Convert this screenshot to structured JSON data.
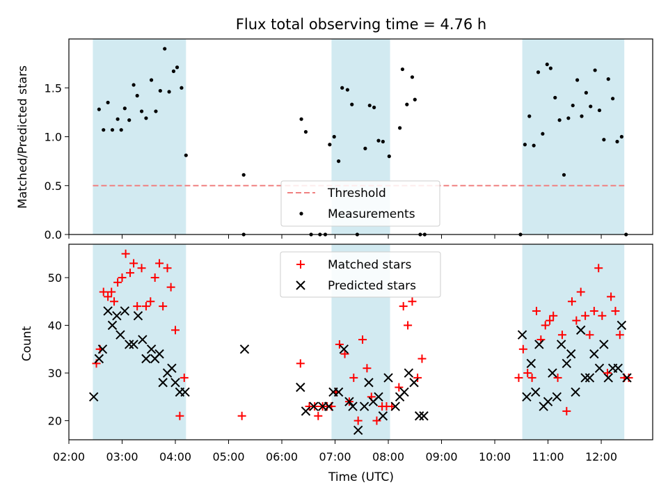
{
  "title": "Flux total observing time = 4.76 h",
  "colors": {
    "shade": "#add8e6",
    "threshold": "#f08080",
    "measurement": "#000000",
    "matched": "#ff0000",
    "predicted": "#000000"
  },
  "chart_data": [
    {
      "type": "scatter",
      "title": "Flux total observing time = 4.76 h",
      "xlabel": "",
      "ylabel": "Matched/Predicted stars",
      "xlim": [
        "02:00",
        "12:58"
      ],
      "ylim": [
        0,
        2.0
      ],
      "yticks": [
        0.0,
        0.5,
        1.0,
        1.5
      ],
      "ytick_labels": [
        "0.0",
        "0.5",
        "1.0",
        "1.5"
      ],
      "grid": false,
      "legend_position": "bottom-center",
      "shaded_intervals": [
        [
          "02:27",
          "04:12"
        ],
        [
          "06:56",
          "08:02"
        ],
        [
          "10:31",
          "12:26"
        ]
      ],
      "threshold": {
        "name": "Threshold",
        "value": 0.5,
        "x_range": [
          "02:27",
          "12:26"
        ]
      },
      "series": [
        {
          "name": "Measurements",
          "marker": "dot",
          "x": [
            "02:34",
            "02:39",
            "02:44",
            "02:49",
            "02:55",
            "02:59",
            "03:03",
            "03:08",
            "03:13",
            "03:17",
            "03:22",
            "03:27",
            "03:33",
            "03:38",
            "03:43",
            "03:48",
            "03:53",
            "03:58",
            "04:02",
            "04:07",
            "04:12",
            "05:17",
            "05:17",
            "06:22",
            "06:27",
            "06:33",
            "06:43",
            "06:49",
            "06:54",
            "06:59",
            "07:04",
            "07:08",
            "07:14",
            "07:19",
            "07:25",
            "07:34",
            "07:39",
            "07:44",
            "07:49",
            "07:54",
            "08:01",
            "08:13",
            "08:16",
            "08:21",
            "08:27",
            "08:30",
            "08:36",
            "08:41",
            "10:29",
            "10:34",
            "10:39",
            "10:44",
            "10:49",
            "10:54",
            "10:59",
            "11:03",
            "11:08",
            "11:13",
            "11:18",
            "11:23",
            "11:28",
            "11:33",
            "11:38",
            "11:43",
            "11:48",
            "11:53",
            "11:58",
            "12:03",
            "12:08",
            "12:13",
            "12:18",
            "12:23",
            "12:28"
          ],
          "y": [
            1.28,
            1.07,
            1.35,
            1.07,
            1.18,
            1.07,
            1.29,
            1.17,
            1.53,
            1.42,
            1.26,
            1.19,
            1.58,
            1.26,
            1.47,
            1.9,
            1.46,
            1.67,
            1.71,
            1.5,
            0.81,
            0.61,
            0.0,
            1.18,
            1.05,
            0.0,
            0.0,
            0.0,
            0.92,
            1.0,
            0.75,
            1.5,
            1.48,
            1.33,
            0.0,
            0.88,
            1.32,
            1.3,
            0.96,
            0.95,
            0.8,
            1.09,
            1.69,
            1.33,
            1.61,
            1.38,
            0.0,
            0.0,
            0.0,
            0.92,
            1.21,
            0.91,
            1.66,
            1.03,
            1.74,
            1.7,
            1.4,
            1.17,
            0.61,
            1.19,
            1.32,
            1.58,
            1.21,
            1.45,
            1.31,
            1.68,
            1.27,
            0.97,
            1.59,
            1.39,
            0.95,
            1.0,
            0.0
          ]
        }
      ]
    },
    {
      "type": "scatter",
      "xlabel": "Time (UTC)",
      "ylabel": "Count",
      "xlim": [
        "02:00",
        "12:58"
      ],
      "ylim": [
        16,
        57
      ],
      "yticks": [
        20,
        30,
        40,
        50
      ],
      "ytick_labels": [
        "20",
        "30",
        "40",
        "50"
      ],
      "xticks": [
        "02:00",
        "03:00",
        "04:00",
        "05:00",
        "06:00",
        "07:00",
        "08:00",
        "09:00",
        "10:00",
        "11:00",
        "12:00"
      ],
      "grid": false,
      "legend_position": "top-center",
      "shaded_intervals": [
        [
          "02:27",
          "04:12"
        ],
        [
          "06:56",
          "08:02"
        ],
        [
          "10:31",
          "12:26"
        ]
      ],
      "series": [
        {
          "name": "Matched stars",
          "marker": "plus",
          "x": [
            "02:31",
            "02:35",
            "02:39",
            "02:44",
            "02:48",
            "02:51",
            "02:55",
            "03:00",
            "03:04",
            "03:09",
            "03:13",
            "03:17",
            "03:22",
            "03:27",
            "03:32",
            "03:37",
            "03:42",
            "03:46",
            "03:51",
            "03:55",
            "04:00",
            "04:05",
            "04:10",
            "05:15",
            "06:21",
            "06:31",
            "06:37",
            "06:41",
            "06:46",
            "06:51",
            "06:56",
            "07:01",
            "07:05",
            "07:11",
            "07:16",
            "07:21",
            "07:26",
            "07:31",
            "07:36",
            "07:41",
            "07:47",
            "07:53",
            "07:58",
            "08:04",
            "08:12",
            "08:17",
            "08:22",
            "08:27",
            "08:33",
            "08:38",
            "10:27",
            "10:32",
            "10:37",
            "10:42",
            "10:47",
            "10:52",
            "10:57",
            "11:02",
            "11:06",
            "11:11",
            "11:16",
            "11:21",
            "11:27",
            "11:32",
            "11:37",
            "11:42",
            "11:47",
            "11:52",
            "11:57",
            "12:01",
            "12:07",
            "12:11",
            "12:16",
            "12:21",
            "12:26",
            "12:31"
          ],
          "y": [
            32,
            35,
            47,
            46,
            47,
            45,
            49,
            50,
            55,
            51,
            53,
            44,
            52,
            44,
            45,
            50,
            53,
            44,
            52,
            48,
            39,
            21,
            29,
            21,
            32,
            23,
            23,
            21,
            23,
            23,
            23,
            26,
            36,
            34,
            24,
            29,
            20,
            37,
            31,
            25,
            20,
            23,
            23,
            23,
            27,
            44,
            40,
            45,
            29,
            33,
            29,
            35,
            30,
            29,
            43,
            37,
            40,
            41,
            42,
            29,
            38,
            22,
            45,
            41,
            47,
            42,
            38,
            43,
            52,
            42,
            30,
            46,
            43,
            38,
            29,
            29
          ]
        },
        {
          "name": "Predicted stars",
          "marker": "x",
          "x": [
            "02:28",
            "02:34",
            "02:38",
            "02:44",
            "02:49",
            "02:54",
            "02:58",
            "03:03",
            "03:08",
            "03:13",
            "03:18",
            "03:23",
            "03:27",
            "03:33",
            "03:37",
            "03:42",
            "03:46",
            "03:51",
            "03:56",
            "04:00",
            "04:05",
            "04:11",
            "05:18",
            "06:21",
            "06:27",
            "06:36",
            "06:46",
            "06:53",
            "06:58",
            "07:04",
            "07:10",
            "07:16",
            "07:20",
            "07:26",
            "07:33",
            "07:38",
            "07:43",
            "07:49",
            "07:54",
            "08:00",
            "08:08",
            "08:13",
            "08:18",
            "08:23",
            "08:29",
            "08:35",
            "08:40",
            "10:31",
            "10:36",
            "10:41",
            "10:46",
            "10:50",
            "10:55",
            "11:00",
            "11:05",
            "11:10",
            "11:15",
            "11:21",
            "11:26",
            "11:31",
            "11:37",
            "11:42",
            "11:47",
            "11:52",
            "11:58",
            "12:03",
            "12:08",
            "12:13",
            "12:19",
            "12:23",
            "12:29"
          ],
          "y": [
            25,
            33,
            35,
            43,
            40,
            42,
            38,
            43,
            36,
            36,
            42,
            37,
            33,
            35,
            33,
            34,
            28,
            30,
            31,
            28,
            26,
            26,
            35,
            27,
            22,
            23,
            23,
            23,
            26,
            26,
            35,
            24,
            23,
            18,
            23,
            28,
            24,
            25,
            21,
            29,
            23,
            25,
            26,
            30,
            28,
            21,
            21,
            38,
            25,
            32,
            26,
            36,
            23,
            24,
            30,
            25,
            36,
            32,
            34,
            26,
            39,
            29,
            29,
            34,
            31,
            36,
            29,
            31,
            31,
            40,
            29
          ]
        }
      ]
    }
  ]
}
